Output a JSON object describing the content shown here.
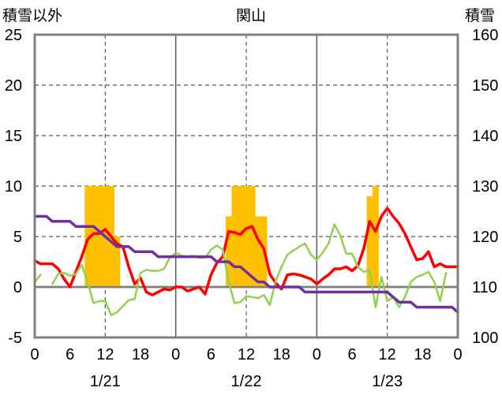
{
  "chart_data": {
    "type": "line",
    "title": "関山",
    "y_left_label": "積雪以外",
    "y_right_label": "積雪",
    "y_left_range": [
      -5,
      25
    ],
    "y_left_ticks": [
      -5,
      0,
      5,
      10,
      15,
      20,
      25
    ],
    "y_right_range": [
      100,
      160
    ],
    "y_right_ticks": [
      100,
      110,
      120,
      130,
      140,
      150,
      160
    ],
    "x_range_hours": [
      0,
      72
    ],
    "x_tick_hours": [
      0,
      6,
      12,
      18,
      24,
      30,
      36,
      42,
      48,
      54,
      60,
      66,
      72
    ],
    "x_tick_labels": [
      "0",
      "6",
      "12",
      "18",
      "0",
      "6",
      "12",
      "18",
      "0",
      "6",
      "12",
      "18",
      "0"
    ],
    "day_labels": [
      {
        "text": "1/21",
        "hour": 12
      },
      {
        "text": "1/22",
        "hour": 36
      },
      {
        "text": "1/23",
        "hour": 60
      }
    ],
    "day_boundaries": [
      24,
      48
    ],
    "noon_lines": [
      12,
      36,
      60
    ],
    "grid": true,
    "series": [
      {
        "kind": "bar",
        "axis": "left",
        "color": "#FFC000",
        "hours": [
          9,
          10,
          11,
          12,
          13,
          14,
          33,
          34,
          35,
          36,
          37,
          38,
          39,
          57,
          58
        ],
        "values": [
          10,
          10,
          10,
          10,
          10,
          5,
          7,
          10,
          10,
          10,
          10,
          7,
          7,
          9,
          10
        ]
      },
      {
        "kind": "line",
        "axis": "left",
        "color": "#FF0000",
        "x": [
          0,
          1,
          2,
          3,
          4,
          5,
          6,
          7,
          8,
          9,
          10,
          11,
          12,
          13,
          14,
          15,
          16,
          17,
          18,
          19,
          20,
          21,
          22,
          23,
          24,
          25,
          26,
          27,
          28,
          29,
          30,
          31,
          32,
          33,
          34,
          35,
          36,
          37,
          38,
          39,
          40,
          41,
          42,
          43,
          44,
          45,
          46,
          47,
          48,
          49,
          50,
          51,
          52,
          53,
          54,
          55,
          56,
          57,
          58,
          59,
          60,
          61,
          62,
          63,
          64,
          65,
          66,
          67,
          68,
          69,
          70,
          71,
          72
        ],
        "y": [
          2.6,
          2.3,
          2.3,
          2.3,
          1.8,
          0.8,
          0,
          1.5,
          3,
          4.7,
          5.3,
          5.3,
          5.7,
          5,
          4.3,
          4,
          2,
          0.3,
          0.9,
          -0.5,
          -0.8,
          -0.5,
          -0.2,
          -0.3,
          0,
          0,
          -0.4,
          -0.2,
          0,
          -0.7,
          1.2,
          2.4,
          3,
          5.5,
          5.4,
          5.2,
          5.8,
          6,
          4.7,
          3.8,
          1.3,
          0.4,
          -0.2,
          1.2,
          1.3,
          1.2,
          1,
          0.8,
          0.3,
          0.8,
          1.2,
          1.8,
          1.8,
          2,
          1.6,
          2.1,
          3.8,
          6.5,
          5.5,
          7,
          7.8,
          7,
          6.3,
          5.3,
          4,
          2.7,
          2.8,
          3.5,
          2,
          2.3,
          2,
          2,
          2
        ]
      },
      {
        "kind": "line",
        "axis": "left",
        "color": "#92D050",
        "x": [
          0,
          1,
          2,
          3,
          4,
          5,
          6,
          7,
          8,
          9,
          10,
          11,
          12,
          13,
          14,
          15,
          16,
          17,
          18,
          19,
          20,
          21,
          22,
          23,
          24,
          25,
          26,
          27,
          28,
          29,
          30,
          31,
          32,
          33,
          34,
          35,
          36,
          37,
          38,
          39,
          40,
          41,
          42,
          43,
          44,
          45,
          46,
          47,
          48,
          49,
          50,
          51,
          52,
          53,
          54,
          55,
          56,
          57,
          58,
          59,
          60,
          61,
          62,
          63,
          64,
          65,
          66,
          67,
          68,
          69,
          70,
          71,
          72
        ],
        "y": [
          0.5,
          1.2,
          null,
          0.3,
          1.3,
          1.4,
          1.1,
          1.3,
          2.2,
          0.5,
          -1.6,
          -1.4,
          -1.4,
          -2.8,
          -2.5,
          -1.9,
          -1.3,
          -1.2,
          1.4,
          1.7,
          1.6,
          1.6,
          1.8,
          2.9,
          3.4,
          3.1,
          3,
          3.1,
          2.9,
          2.9,
          3.7,
          4.1,
          3.7,
          0.5,
          -1.6,
          -1.5,
          -0.9,
          -1,
          -1.1,
          -0.8,
          -1.8,
          0.6,
          2,
          3.2,
          3.6,
          4,
          4.3,
          3.2,
          2.7,
          3.4,
          4.3,
          6.2,
          5.1,
          3.3,
          3.3,
          2,
          1.5,
          1.7,
          -2,
          1,
          -1.4,
          -1,
          -2,
          -1,
          0.5,
          1,
          1.2,
          1.5,
          0.5,
          -1.4,
          1.4,
          null,
          null
        ]
      },
      {
        "kind": "line",
        "axis": "right",
        "color": "#7030A0",
        "x": [
          0,
          1,
          2,
          3,
          4,
          5,
          6,
          7,
          8,
          9,
          10,
          11,
          12,
          13,
          14,
          15,
          16,
          17,
          18,
          19,
          20,
          21,
          22,
          23,
          24,
          25,
          26,
          27,
          28,
          29,
          30,
          31,
          32,
          33,
          34,
          35,
          36,
          37,
          38,
          39,
          40,
          41,
          42,
          43,
          44,
          45,
          46,
          47,
          48,
          49,
          50,
          51,
          52,
          53,
          54,
          55,
          56,
          57,
          58,
          59,
          60,
          61,
          62,
          63,
          64,
          65,
          66,
          67,
          68,
          69,
          70,
          71,
          72
        ],
        "y": [
          124,
          124,
          124,
          123,
          123,
          123,
          123,
          122,
          122,
          122,
          122,
          121,
          120,
          119,
          118,
          118,
          118,
          117,
          117,
          117,
          117,
          116,
          116,
          116,
          116,
          116,
          116,
          116,
          116,
          116,
          116,
          115,
          115,
          115,
          114,
          114,
          113,
          112,
          111,
          111,
          110,
          110,
          110,
          110,
          110,
          110,
          109,
          109,
          109,
          109,
          109,
          109,
          109,
          109,
          109,
          109,
          109,
          109,
          109,
          109,
          109,
          108,
          107,
          107,
          107,
          106,
          106,
          106,
          106,
          106,
          106,
          106,
          105
        ]
      }
    ]
  }
}
